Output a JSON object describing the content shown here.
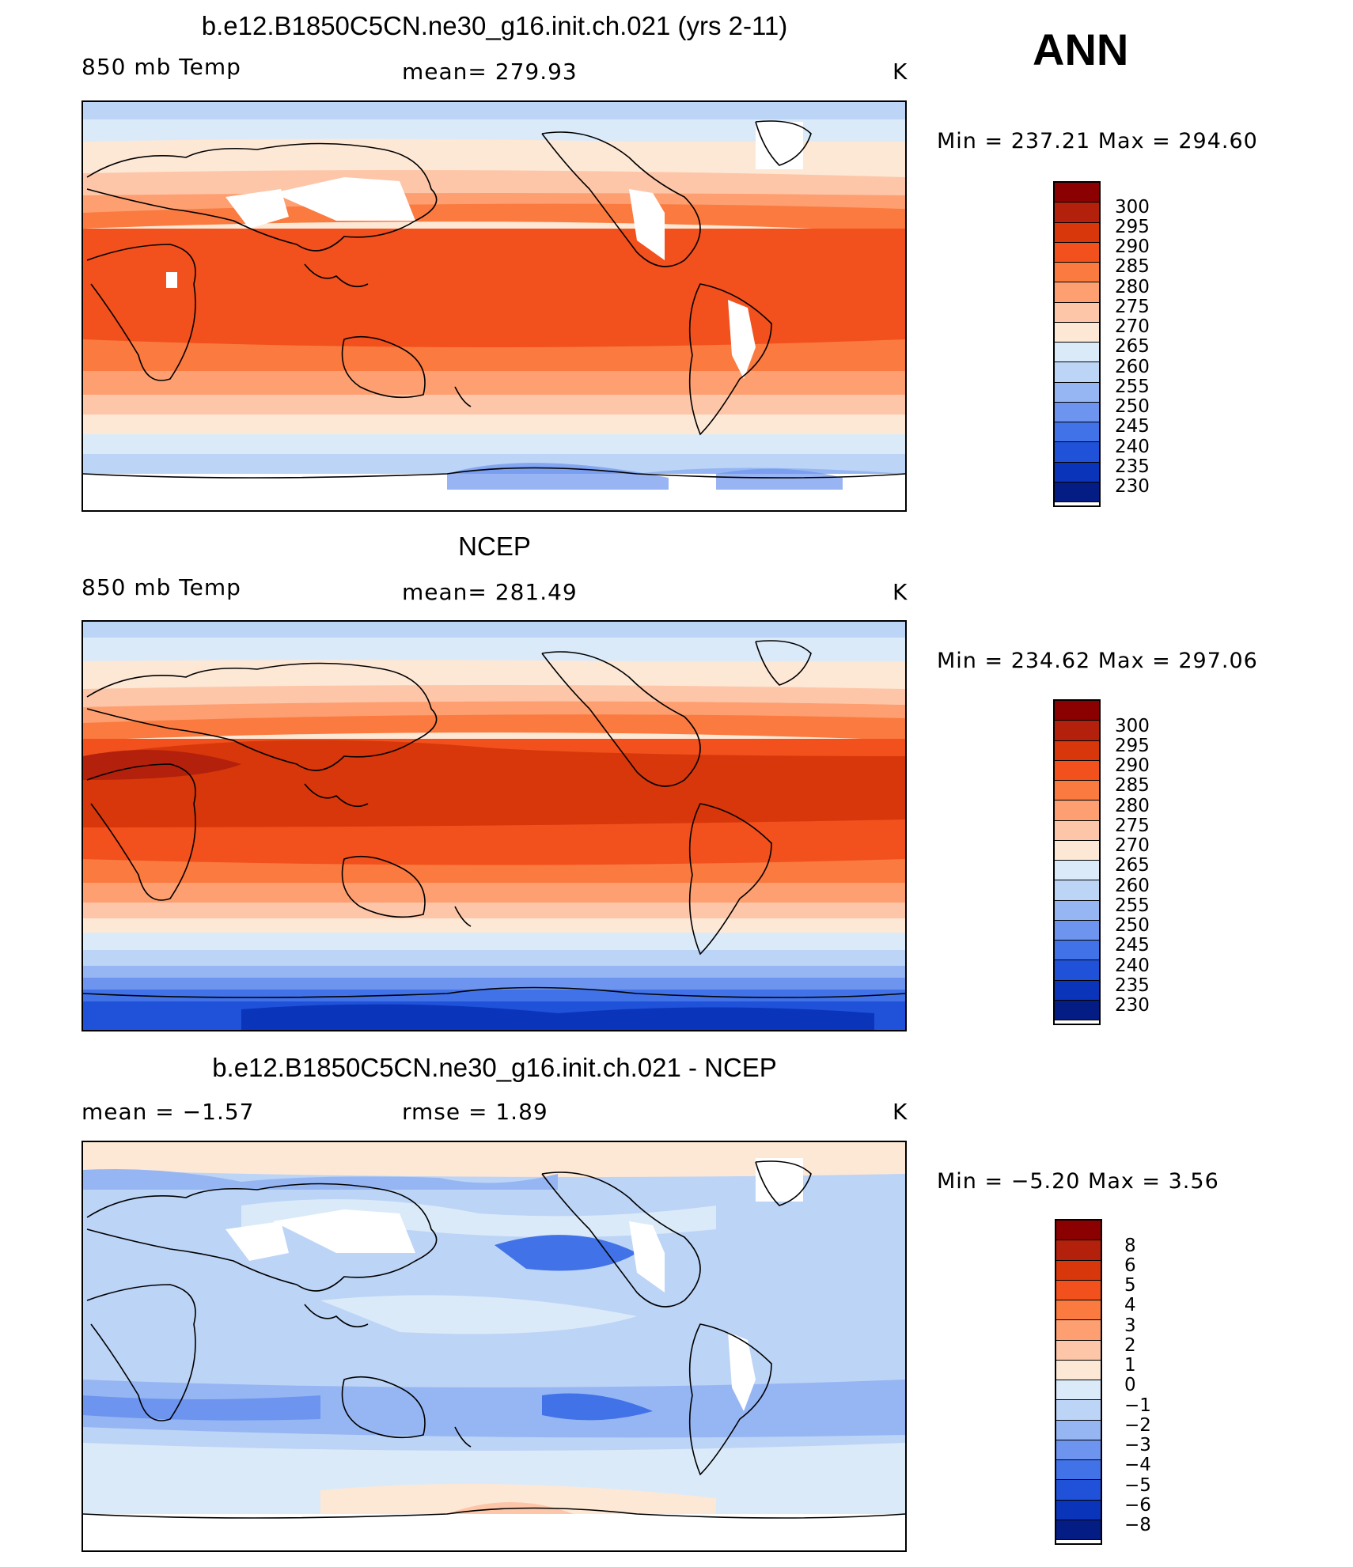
{
  "season_label": "ANN",
  "palette_abs": [
    "#8b0000",
    "#b3200b",
    "#d7370a",
    "#f2501c",
    "#fa7a40",
    "#fd9f70",
    "#fdc6a8",
    "#fde8d6",
    "#dbeaf9",
    "#bcd4f6",
    "#96b6f3",
    "#6d94ee",
    "#4172e8",
    "#1f52d9",
    "#0a34ba",
    "#041d85"
  ],
  "palette_diff": [
    "#8b0000",
    "#b3200b",
    "#d7370a",
    "#f2501c",
    "#fa7a40",
    "#fd9f70",
    "#fdc6a8",
    "#fde8d6",
    "#dbeaf9",
    "#bcd4f6",
    "#96b6f3",
    "#6d94ee",
    "#4172e8",
    "#1f52d9",
    "#0a34ba",
    "#041d85"
  ],
  "panels": [
    {
      "title": "b.e12.B1850C5CN.ne30_g16.init.ch.021 (yrs 2-11)",
      "left_label": "850 mb Temp",
      "center_label": "mean=  279.93",
      "units": "K",
      "minmax": "Min  =  237.21  Max  =  294.60",
      "colorbar_ticks": [
        "300",
        "295",
        "290",
        "285",
        "280",
        "275",
        "270",
        "265",
        "260",
        "255",
        "250",
        "245",
        "240",
        "235",
        "230"
      ]
    },
    {
      "title": "NCEP",
      "left_label": "850 mb Temp",
      "center_label": "mean=  281.49",
      "units": "K",
      "minmax": "Min  =  234.62  Max  =  297.06",
      "colorbar_ticks": [
        "300",
        "295",
        "290",
        "285",
        "280",
        "275",
        "270",
        "265",
        "260",
        "255",
        "250",
        "245",
        "240",
        "235",
        "230"
      ]
    },
    {
      "title": "b.e12.B1850C5CN.ne30_g16.init.ch.021 - NCEP",
      "left_label": "mean  =    −1.57",
      "center_label": "rmse  =     1.89",
      "units": "K",
      "minmax": "Min  =    −5.20  Max  =     3.56",
      "colorbar_ticks": [
        "8",
        "6",
        "5",
        "4",
        "3",
        "2",
        "1",
        "0",
        "−1",
        "−2",
        "−3",
        "−4",
        "−5",
        "−6",
        "−8"
      ]
    }
  ]
}
